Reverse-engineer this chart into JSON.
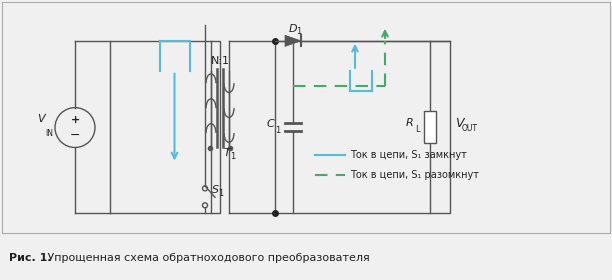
{
  "bg_color": "#f0f0f0",
  "circuit_bg": "#ffffff",
  "dark_color": "#555555",
  "black_color": "#222222",
  "cyan_color": "#55bbdd",
  "green_color": "#44aa66",
  "caption_bold": "Рис. 1.",
  "caption_normal": " Упрощенная схема обратноходового преобразователя",
  "legend_solid": "Ток в цепи, S₁ замкнут",
  "legend_dashed": "Ток в цепи, S₁ разомкнут",
  "caption_bg": "#e0e0e0",
  "fig_width": 6.12,
  "fig_height": 2.8
}
